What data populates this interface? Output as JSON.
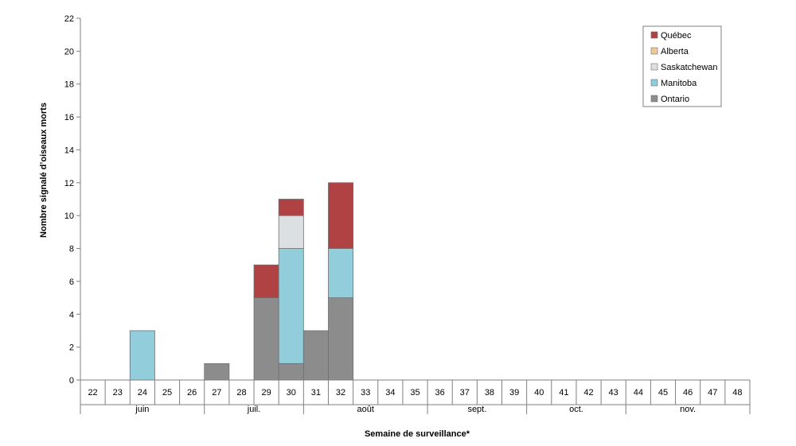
{
  "chart_data": {
    "type": "bar",
    "stacked": true,
    "xlabel": "Semaine de surveillance*",
    "ylabel": "Nombre signalé d’oiseaux morts",
    "ylim": [
      0,
      22
    ],
    "yticks": [
      "0",
      "2",
      "4",
      "6",
      "8",
      "10",
      "12",
      "14",
      "16",
      "18",
      "20",
      "22"
    ],
    "grid": false,
    "legend_position": "top-right",
    "categories": [
      "22",
      "23",
      "24",
      "25",
      "26",
      "27",
      "28",
      "29",
      "30",
      "31",
      "32",
      "33",
      "34",
      "35",
      "36",
      "37",
      "38",
      "39",
      "40",
      "41",
      "42",
      "43",
      "44",
      "45",
      "46",
      "47",
      "48"
    ],
    "months": [
      {
        "label": "juin",
        "start": 0,
        "end": 5
      },
      {
        "label": "juil.",
        "start": 5,
        "end": 9
      },
      {
        "label": "août",
        "start": 9,
        "end": 14
      },
      {
        "label": "sept.",
        "start": 14,
        "end": 18
      },
      {
        "label": "oct.",
        "start": 18,
        "end": 22
      },
      {
        "label": "nov.",
        "start": 22,
        "end": 27
      }
    ],
    "series": [
      {
        "name": "Ontario",
        "color": "#8c8c8c",
        "values": [
          0,
          0,
          0,
          0,
          0,
          1,
          0,
          5,
          1,
          3,
          5,
          0,
          0,
          0,
          0,
          0,
          0,
          0,
          0,
          0,
          0,
          0,
          0,
          0,
          0,
          0,
          0
        ]
      },
      {
        "name": "Manitoba",
        "color": "#92cddc",
        "values": [
          0,
          0,
          3,
          0,
          0,
          0,
          0,
          0,
          7,
          0,
          3,
          0,
          0,
          0,
          0,
          0,
          0,
          0,
          0,
          0,
          0,
          0,
          0,
          0,
          0,
          0,
          0
        ]
      },
      {
        "name": "Saskatchewan",
        "color": "#dde0e3",
        "values": [
          0,
          0,
          0,
          0,
          0,
          0,
          0,
          0,
          2,
          0,
          0,
          0,
          0,
          0,
          0,
          0,
          0,
          0,
          0,
          0,
          0,
          0,
          0,
          0,
          0,
          0,
          0
        ]
      },
      {
        "name": "Alberta",
        "color": "#f0c99b",
        "values": [
          0,
          0,
          0,
          0,
          0,
          0,
          0,
          0,
          0,
          0,
          0,
          0,
          0,
          0,
          0,
          0,
          0,
          0,
          0,
          0,
          0,
          0,
          0,
          0,
          0,
          0,
          0
        ]
      },
      {
        "name": "Québec",
        "color": "#b04244",
        "values": [
          0,
          0,
          0,
          0,
          0,
          0,
          0,
          2,
          1,
          0,
          4,
          0,
          0,
          0,
          0,
          0,
          0,
          0,
          0,
          0,
          0,
          0,
          0,
          0,
          0,
          0,
          0
        ]
      }
    ],
    "legend_order": [
      "Québec",
      "Alberta",
      "Saskatchewan",
      "Manitoba",
      "Ontario"
    ]
  }
}
